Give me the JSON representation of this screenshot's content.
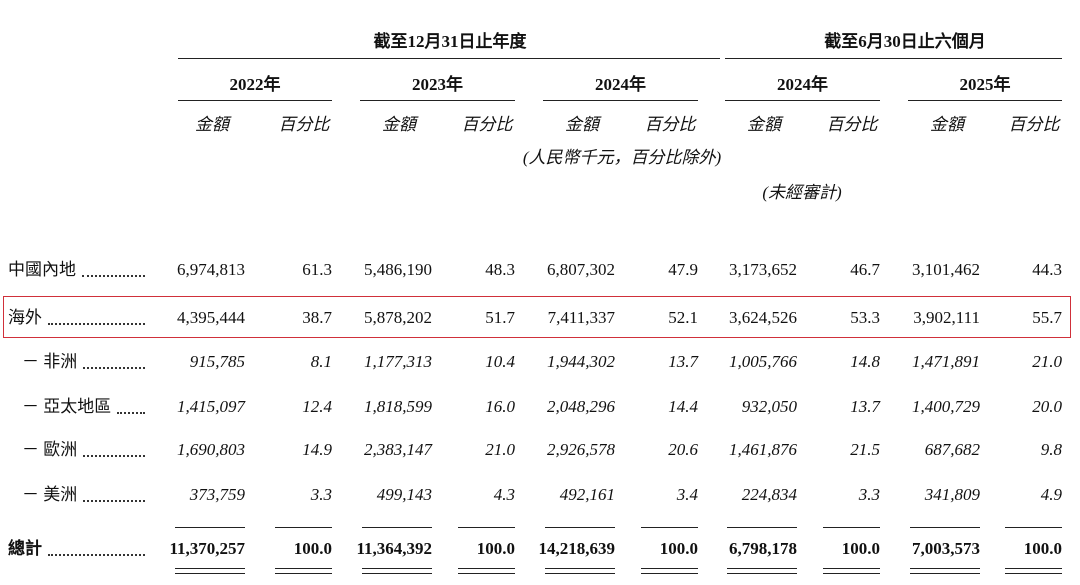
{
  "header": {
    "period_groups": [
      "截至12月31日止年度",
      "截至6月30日止六個月"
    ],
    "years": [
      "2022年",
      "2023年",
      "2024年",
      "2024年",
      "2025年"
    ],
    "subheaders": [
      "金額",
      "百分比"
    ],
    "currency_note": "(人民幣千元，百分比除外)",
    "audit_note": "(未經審計)"
  },
  "table": {
    "rows": [
      {
        "label": "中國內地",
        "values": [
          "6,974,813",
          "61.3",
          "5,486,190",
          "48.3",
          "6,807,302",
          "47.9",
          "3,173,652",
          "46.7",
          "3,101,462",
          "44.3"
        ]
      },
      {
        "label": "海外",
        "values": [
          "4,395,444",
          "38.7",
          "5,878,202",
          "51.7",
          "7,411,337",
          "52.1",
          "3,624,526",
          "53.3",
          "3,902,111",
          "55.7"
        ]
      },
      {
        "label": "－ 非洲",
        "values": [
          "915,785",
          "8.1",
          "1,177,313",
          "10.4",
          "1,944,302",
          "13.7",
          "1,005,766",
          "14.8",
          "1,471,891",
          "21.0"
        ]
      },
      {
        "label": "－ 亞太地區",
        "values": [
          "1,415,097",
          "12.4",
          "1,818,599",
          "16.0",
          "2,048,296",
          "14.4",
          "932,050",
          "13.7",
          "1,400,729",
          "20.0"
        ]
      },
      {
        "label": "－ 歐洲",
        "values": [
          "1,690,803",
          "14.9",
          "2,383,147",
          "21.0",
          "2,926,578",
          "20.6",
          "1,461,876",
          "21.5",
          "687,682",
          "9.8"
        ]
      },
      {
        "label": "－ 美洲",
        "values": [
          "373,759",
          "3.3",
          "499,143",
          "4.3",
          "492,161",
          "3.4",
          "224,834",
          "3.3",
          "341,809",
          "4.9"
        ]
      },
      {
        "label": "總計",
        "values": [
          "11,370,257",
          "100.0",
          "11,364,392",
          "100.0",
          "14,218,639",
          "100.0",
          "6,798,178",
          "100.0",
          "7,003,573",
          "100.0"
        ]
      }
    ]
  }
}
